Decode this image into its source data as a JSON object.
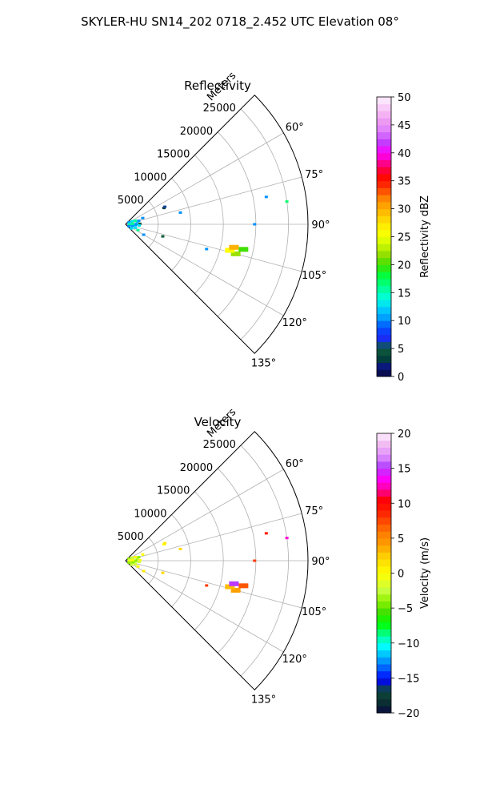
{
  "figure_title": "SKYLER-HU  SN14_202  0718_2.452 UTC Elevation 08°",
  "range_label": "Meters",
  "chart_data": [
    {
      "type": "heatmap",
      "projection": "polar-sector",
      "title": "Reflectivity",
      "theta_range_deg": [
        45,
        135
      ],
      "theta_ticks": [
        "60°",
        "75°",
        "90°",
        "105°",
        "120°",
        "135°"
      ],
      "theta_tick_values": [
        60,
        75,
        90,
        105,
        120,
        135
      ],
      "r_range": [
        0,
        28000
      ],
      "r_ticks": [
        "5000",
        "10000",
        "15000",
        "20000",
        "25000"
      ],
      "r_tick_values": [
        5000,
        10000,
        15000,
        20000,
        25000
      ],
      "colorbar": {
        "label": "Reflectivity dBZ",
        "range": [
          0,
          50
        ],
        "ticks": [
          "0",
          "5",
          "10",
          "15",
          "20",
          "25",
          "30",
          "35",
          "40",
          "45",
          "50"
        ],
        "tick_values": [
          0,
          5,
          10,
          15,
          20,
          25,
          30,
          35,
          40,
          45,
          50
        ]
      },
      "echoes": [
        {
          "r": 6400,
          "theta": 67,
          "value": 3
        },
        {
          "r": 6600,
          "theta": 66,
          "value": 6
        },
        {
          "r": 8600,
          "theta": 78,
          "value": 10
        },
        {
          "r": 22000,
          "theta": 79,
          "value": 10
        },
        {
          "r": 25000,
          "theta": 82,
          "value": 17
        },
        {
          "r": 19800,
          "theta": 90,
          "value": 10
        },
        {
          "r": 17500,
          "theta": 105,
          "value": 22
        },
        {
          "r": 16500,
          "theta": 104,
          "value": 26
        },
        {
          "r": 18500,
          "theta": 102,
          "value": 20
        },
        {
          "r": 17000,
          "theta": 102,
          "value": 30
        },
        {
          "r": 13000,
          "theta": 107,
          "value": 10
        },
        {
          "r": 6000,
          "theta": 108,
          "value": 5
        },
        {
          "r": 3200,
          "theta": 120,
          "value": 10
        },
        {
          "r": 1800,
          "theta": 80,
          "value": 12
        },
        {
          "r": 1500,
          "theta": 95,
          "value": 10
        },
        {
          "r": 2200,
          "theta": 88,
          "value": 5
        },
        {
          "r": 1200,
          "theta": 100,
          "value": 14
        },
        {
          "r": 2800,
          "theta": 70,
          "value": 10
        }
      ]
    },
    {
      "type": "heatmap",
      "projection": "polar-sector",
      "title": "Velocity",
      "theta_range_deg": [
        45,
        135
      ],
      "theta_ticks": [
        "60°",
        "75°",
        "90°",
        "105°",
        "120°",
        "135°"
      ],
      "theta_tick_values": [
        60,
        75,
        90,
        105,
        120,
        135
      ],
      "r_range": [
        0,
        28000
      ],
      "r_ticks": [
        "5000",
        "10000",
        "15000",
        "20000",
        "25000"
      ],
      "r_tick_values": [
        5000,
        10000,
        15000,
        20000,
        25000
      ],
      "colorbar": {
        "label": "Velocity (m/s)",
        "range": [
          -20,
          20
        ],
        "ticks": [
          "−20",
          "−15",
          "−10",
          "−5",
          "0",
          "5",
          "10",
          "15",
          "20"
        ],
        "tick_values": [
          -20,
          -15,
          -10,
          -5,
          0,
          5,
          10,
          15,
          20
        ]
      },
      "echoes": [
        {
          "r": 6400,
          "theta": 67,
          "value": 0
        },
        {
          "r": 6600,
          "theta": 66,
          "value": 1
        },
        {
          "r": 8600,
          "theta": 78,
          "value": 2
        },
        {
          "r": 22000,
          "theta": 79,
          "value": 9
        },
        {
          "r": 25000,
          "theta": 82,
          "value": 13
        },
        {
          "r": 19800,
          "theta": 90,
          "value": 8
        },
        {
          "r": 17500,
          "theta": 105,
          "value": 4
        },
        {
          "r": 16500,
          "theta": 104,
          "value": 3
        },
        {
          "r": 18500,
          "theta": 102,
          "value": 7
        },
        {
          "r": 17000,
          "theta": 102,
          "value": 15
        },
        {
          "r": 13000,
          "theta": 107,
          "value": 8
        },
        {
          "r": 6000,
          "theta": 108,
          "value": 2
        },
        {
          "r": 3200,
          "theta": 120,
          "value": 1
        },
        {
          "r": 1800,
          "theta": 80,
          "value": -3
        },
        {
          "r": 1500,
          "theta": 95,
          "value": -2
        },
        {
          "r": 2200,
          "theta": 88,
          "value": 0
        },
        {
          "r": 1200,
          "theta": 100,
          "value": -4
        },
        {
          "r": 2800,
          "theta": 70,
          "value": 0
        }
      ]
    }
  ]
}
